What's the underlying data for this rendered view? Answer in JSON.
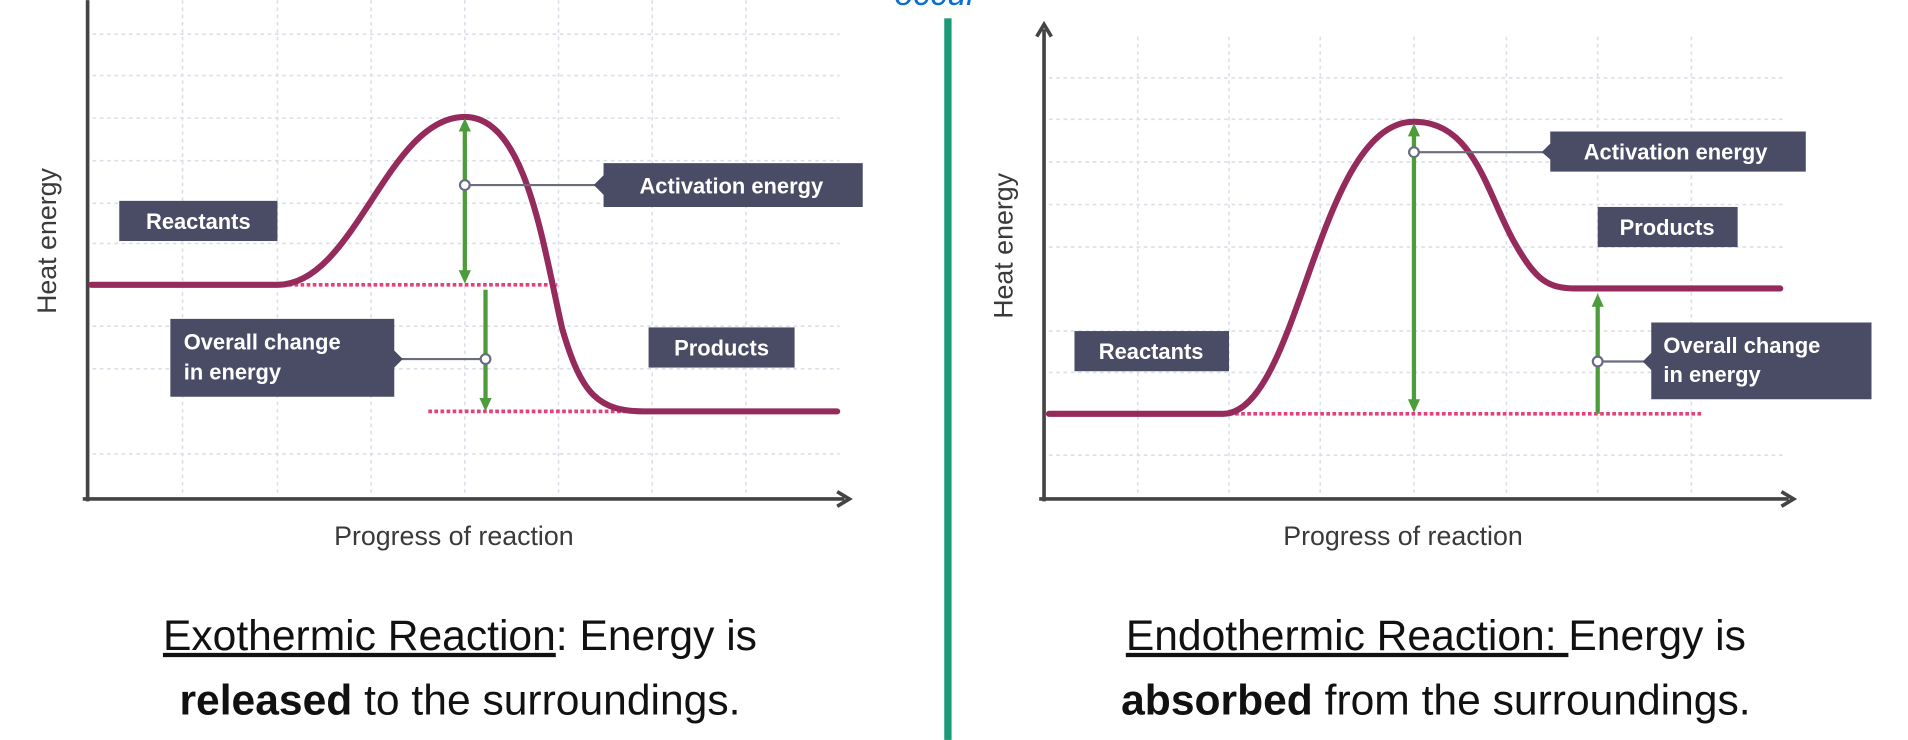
{
  "header_fragment": "occur",
  "colors": {
    "curve": "#952a5c",
    "label_box": "#4a4c66",
    "arrow": "#4c9c3c",
    "dotted": "#e3407c",
    "divider": "#1a9a78",
    "header": "#0a6fd0"
  },
  "exothermic": {
    "y_axis_label": "Heat energy",
    "x_axis_label": "Progress of reaction",
    "labels": {
      "reactants": "Reactants",
      "activation_line": "Activation energy",
      "overall_line1": "Overall change",
      "overall_line2": "in energy",
      "products": "Products"
    },
    "caption": {
      "title": "Exothermic Reaction",
      "title_suffix": ": Energy is",
      "bold": "released",
      "rest": " to the surroundings."
    }
  },
  "endothermic": {
    "y_axis_label": "Heat energy",
    "x_axis_label": "Progress of reaction",
    "labels": {
      "reactants": "Reactants",
      "activation_line": "Activation energy",
      "overall_line1": "Overall change",
      "overall_line2": "in energy",
      "products": "Products"
    },
    "caption": {
      "title": "Endothermic Reaction: ",
      "title_suffix": "Energy is",
      "bold": "absorbed",
      "rest": " from the surroundings."
    }
  }
}
